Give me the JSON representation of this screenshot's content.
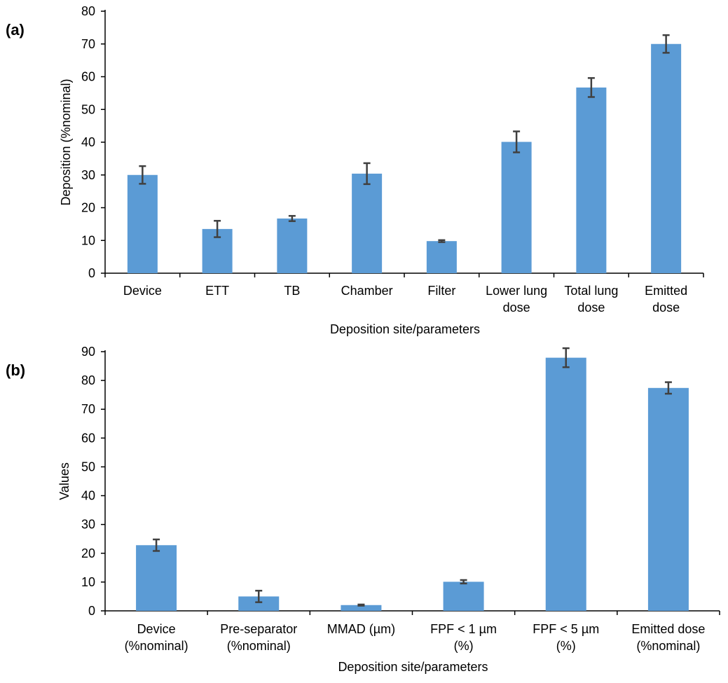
{
  "chart_data": [
    {
      "panel_label": "(a)",
      "type": "bar",
      "xlabel": "Deposition site/parameters",
      "ylabel": "Deposition (%nominal)",
      "ylim": [
        0,
        80
      ],
      "yticks": [
        0,
        10,
        20,
        30,
        40,
        50,
        60,
        70,
        80
      ],
      "grid": false,
      "bar_color": "#5B9BD5",
      "error_color": "#404040",
      "categories": [
        [
          "Device"
        ],
        [
          "ETT"
        ],
        [
          "TB"
        ],
        [
          "Chamber"
        ],
        [
          "Filter"
        ],
        [
          "Lower lung",
          "dose"
        ],
        [
          "Total lung",
          "dose"
        ],
        [
          "Emitted",
          "dose"
        ]
      ],
      "values": [
        30,
        13.5,
        16.7,
        30.4,
        9.8,
        40.1,
        56.7,
        70.0
      ],
      "errors": [
        2.7,
        2.5,
        0.8,
        3.2,
        0.3,
        3.2,
        2.9,
        2.7
      ]
    },
    {
      "panel_label": "(b)",
      "type": "bar",
      "xlabel": "Deposition site/parameters",
      "ylabel": "Values",
      "ylim": [
        0,
        90
      ],
      "yticks": [
        0,
        10,
        20,
        30,
        40,
        50,
        60,
        70,
        80,
        90
      ],
      "grid": false,
      "bar_color": "#5B9BD5",
      "error_color": "#404040",
      "categories": [
        [
          "Device",
          "(%nominal)"
        ],
        [
          "Pre-separator",
          "(%nominal)"
        ],
        [
          "MMAD (µm)"
        ],
        [
          "FPF < 1 µm",
          "(%)"
        ],
        [
          "FPF < 5 µm",
          "(%)"
        ],
        [
          "Emitted dose",
          "(%nominal)"
        ]
      ],
      "values": [
        22.8,
        5.0,
        2.0,
        10.1,
        87.9,
        77.4
      ],
      "errors": [
        2.0,
        2.0,
        0.2,
        0.6,
        3.3,
        2.0
      ]
    }
  ]
}
